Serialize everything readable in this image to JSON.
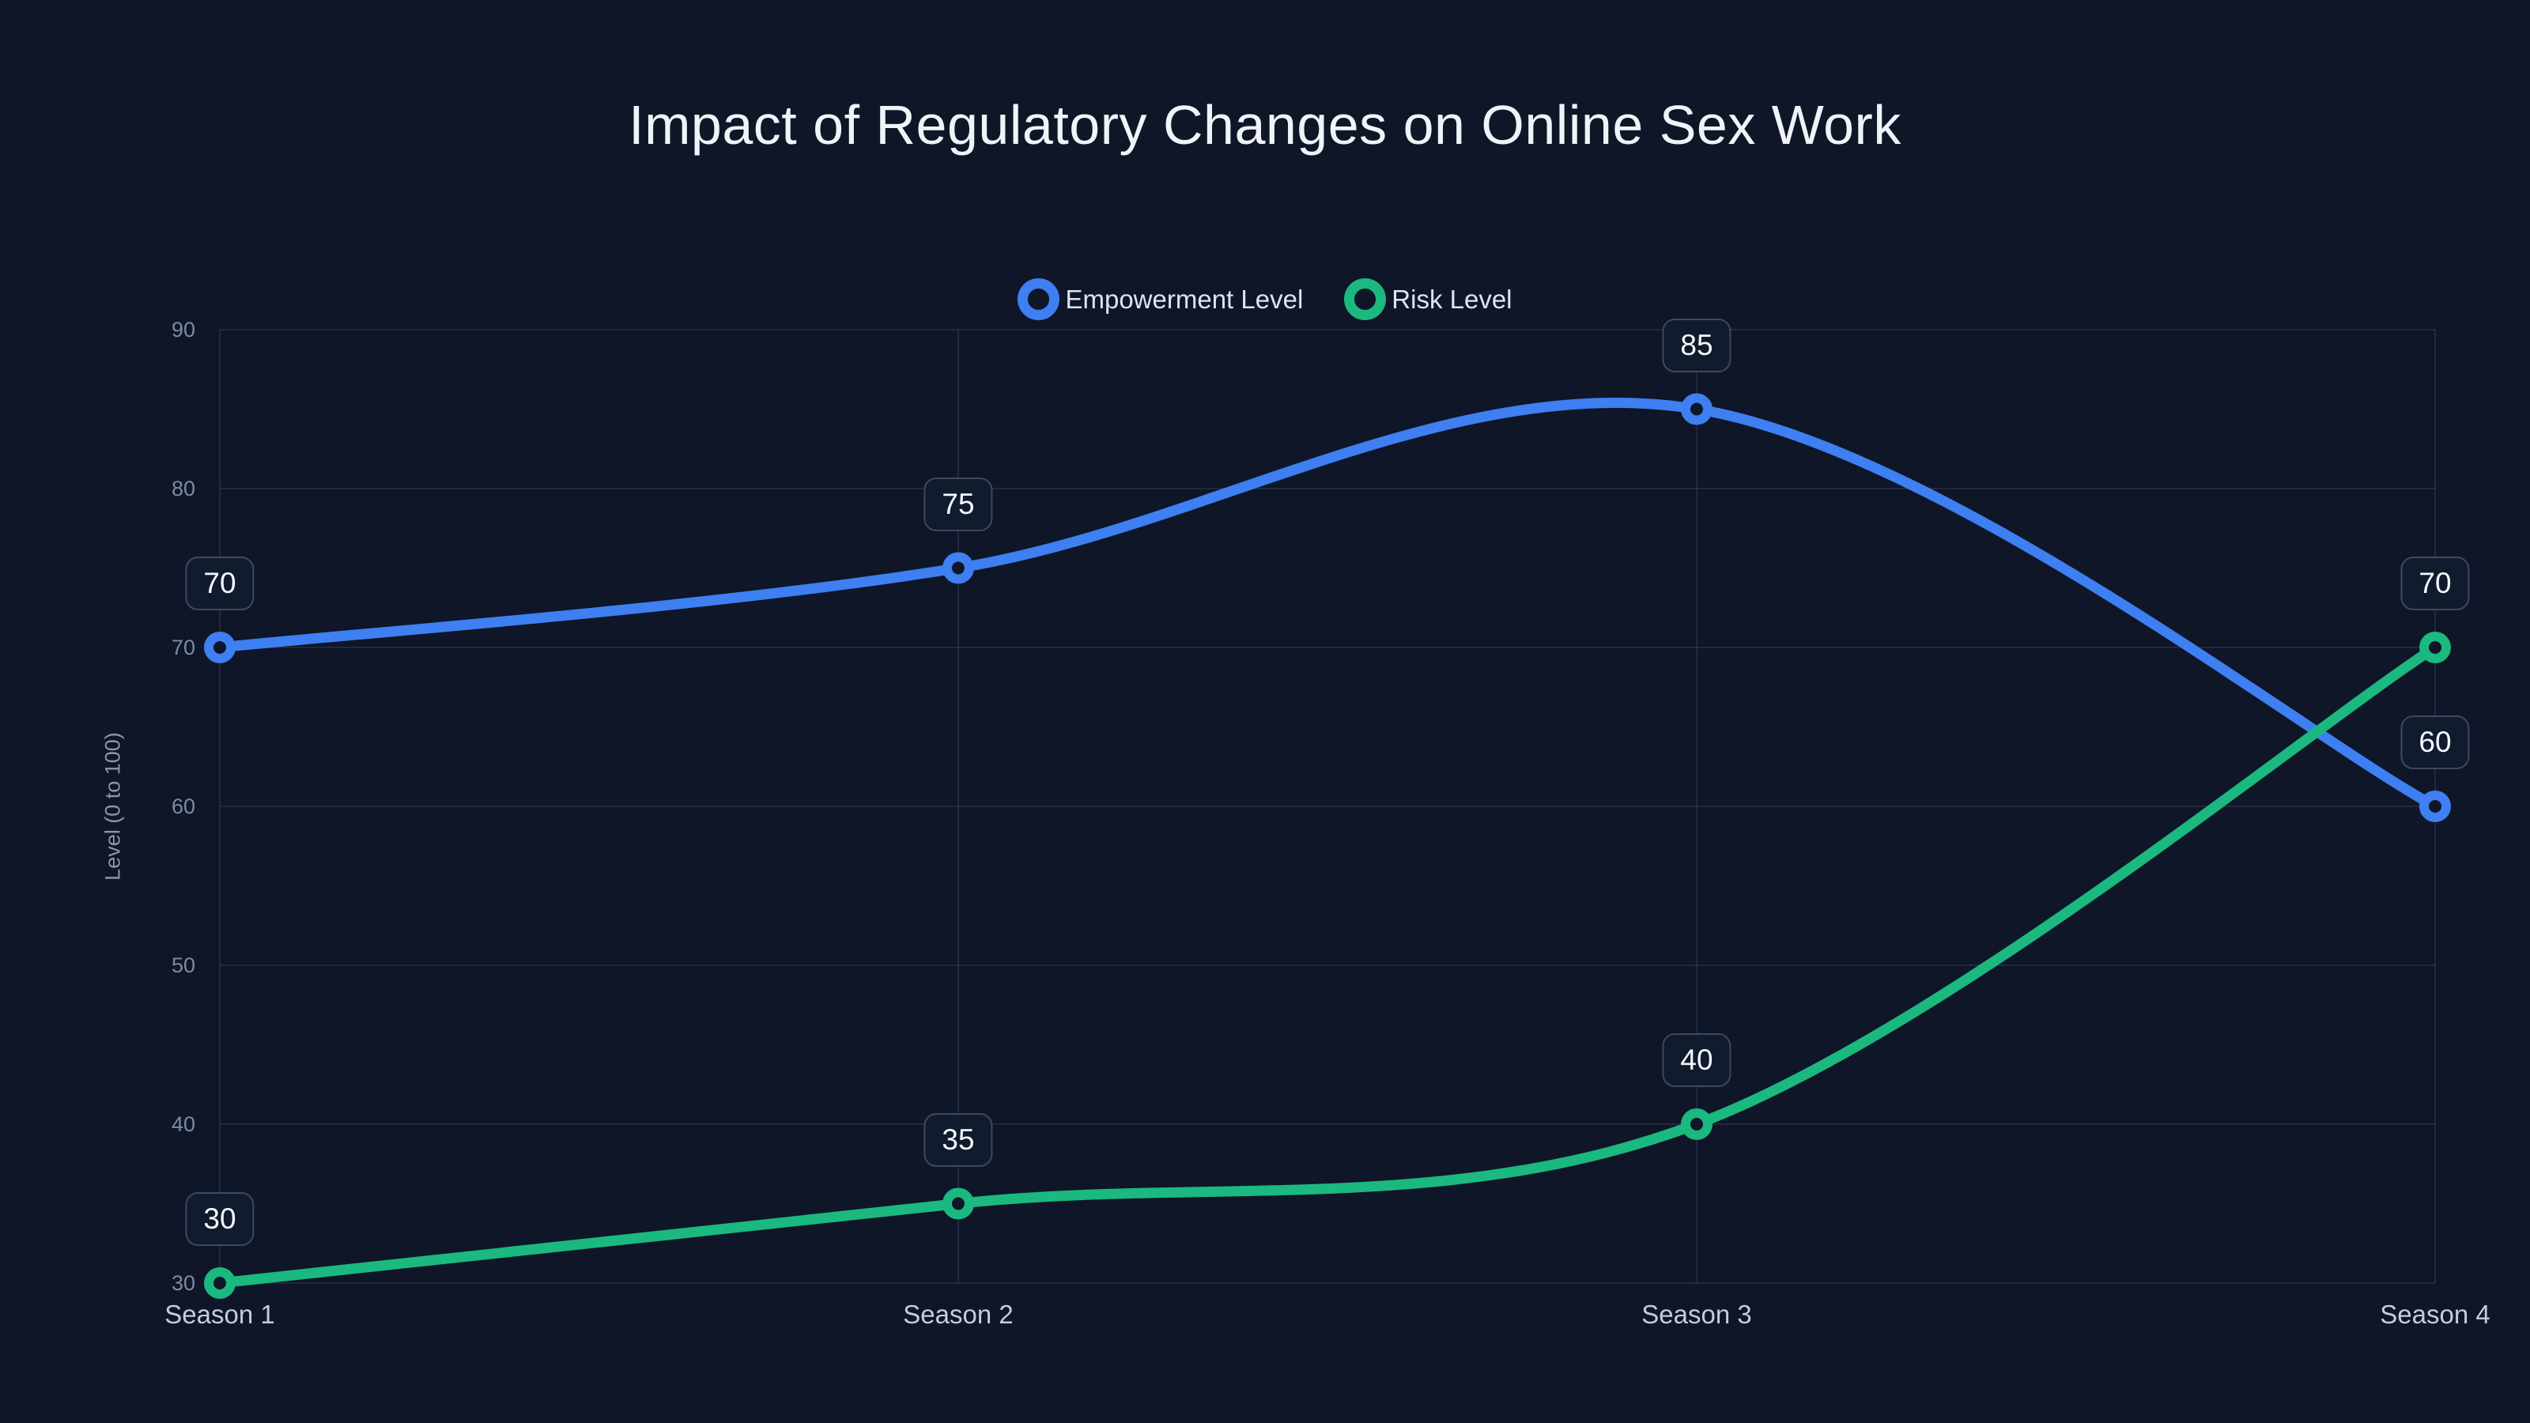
{
  "chart_data": {
    "type": "line",
    "title": "Impact of Regulatory Changes on Online Sex Work",
    "categories": [
      "Season 1",
      "Season 2",
      "Season 3",
      "Season 4"
    ],
    "series": [
      {
        "name": "Empowerment Level",
        "color": "#3E7FF2",
        "values": [
          70,
          75,
          85,
          60
        ]
      },
      {
        "name": "Risk Level",
        "color": "#1BB87F",
        "values": [
          30,
          35,
          40,
          70
        ]
      }
    ],
    "xlabel": "",
    "ylabel": "Level (0 to 100)",
    "ylim": [
      30,
      90
    ],
    "yticks": [
      30,
      40,
      50,
      60,
      70,
      80,
      90
    ],
    "grid": true,
    "smooth": true,
    "markers": "hollow-circle",
    "legend_position": "top-center",
    "point_labels_visible": true
  },
  "colors": {
    "background": "#0E1627",
    "grid_line": "rgba(138,152,176,0.16)",
    "axis_tick_text": "#7E8BA0",
    "axis_name_text": "#8A96AA",
    "category_text": "#C5CDDC",
    "legend_text": "#DEE4EE",
    "title_text": "#F0F4F9",
    "label_box_bg": "#111B2E",
    "label_box_border": "#3C4960",
    "label_box_text": "#F5F8FC"
  }
}
